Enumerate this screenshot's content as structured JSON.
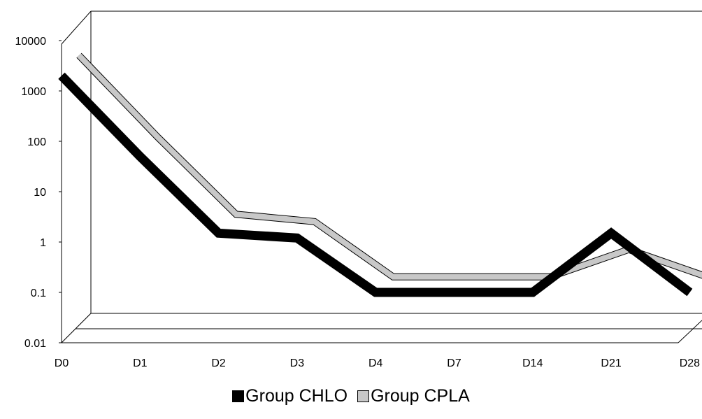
{
  "chart_data": {
    "type": "line",
    "title": "",
    "xlabel": "",
    "ylabel": "",
    "y_scale": "log",
    "ylim": [
      0.01,
      10000
    ],
    "y_ticks": [
      "0.01",
      "0.1",
      "1",
      "10",
      "100",
      "1000",
      "10000"
    ],
    "y_tick_values": [
      0.01,
      0.1,
      1,
      10,
      100,
      1000,
      10000
    ],
    "categories": [
      "D0",
      "D1",
      "D2",
      "D3",
      "D4",
      "D7",
      "D14",
      "D21",
      "D28"
    ],
    "legend_position": "bottom",
    "grid": false,
    "series": [
      {
        "name": "Group CHLO",
        "color": "#000000",
        "values": [
          2000,
          50,
          1.5,
          1.2,
          0.1,
          0.1,
          0.1,
          1.5,
          0.1
        ]
      },
      {
        "name": "Group CPLA",
        "color": "#c8c8c8",
        "values": [
          5000,
          120,
          3.5,
          2.5,
          0.2,
          0.2,
          0.2,
          0.7,
          0.2
        ]
      }
    ]
  }
}
